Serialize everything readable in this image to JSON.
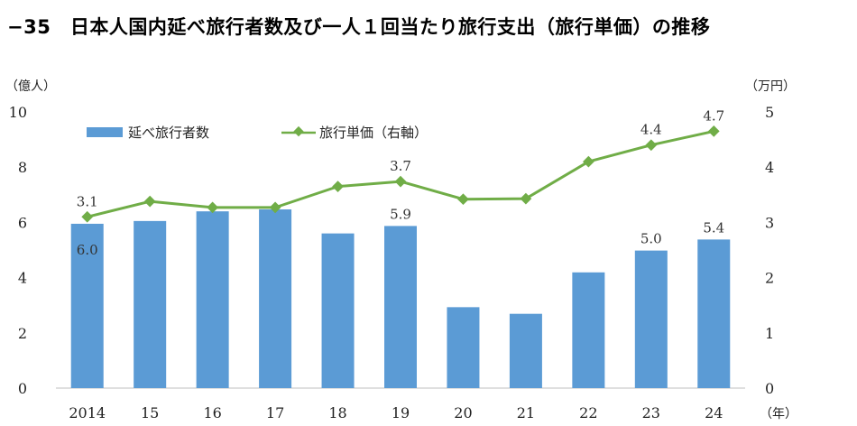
{
  "title": "−35　日本人国内延べ旅行者数及び一人１回当たり旅行支出（旅行単価）の推移",
  "chart_data": {
    "type": "bar+line",
    "categories": [
      "2014",
      "15",
      "16",
      "17",
      "18",
      "19",
      "20",
      "21",
      "22",
      "23",
      "24"
    ],
    "x_unit": "（年）",
    "y_left": {
      "unit": "（億人）",
      "range": [
        0,
        10
      ],
      "ticks": [
        "0",
        "2",
        "4",
        "6",
        "8",
        "10"
      ]
    },
    "y_right": {
      "unit": "（万円）",
      "range": [
        0,
        5
      ],
      "ticks": [
        "0",
        "1",
        "2",
        "3",
        "4",
        "5"
      ]
    },
    "series": [
      {
        "name": "延べ旅行者数",
        "type": "bar",
        "axis": "left",
        "color": "#5b9bd5",
        "values": [
          5.95,
          6.05,
          6.4,
          6.47,
          5.6,
          5.87,
          2.93,
          2.69,
          4.19,
          4.98,
          5.38
        ],
        "data_labels": [
          "6.0",
          "",
          "",
          "",
          "",
          "5.9",
          "",
          "",
          "",
          "5.0",
          "5.4"
        ]
      },
      {
        "name": "旅行単価（右軸）",
        "type": "line",
        "axis": "right",
        "color": "#70ad47",
        "values": [
          3.1,
          3.38,
          3.27,
          3.27,
          3.65,
          3.74,
          3.42,
          3.43,
          4.1,
          4.4,
          4.65
        ],
        "data_labels": [
          "3.1",
          "",
          "",
          "",
          "",
          "3.7",
          "",
          "",
          "",
          "4.4",
          "4.7"
        ]
      }
    ],
    "legend": "top-left",
    "grid": false
  }
}
